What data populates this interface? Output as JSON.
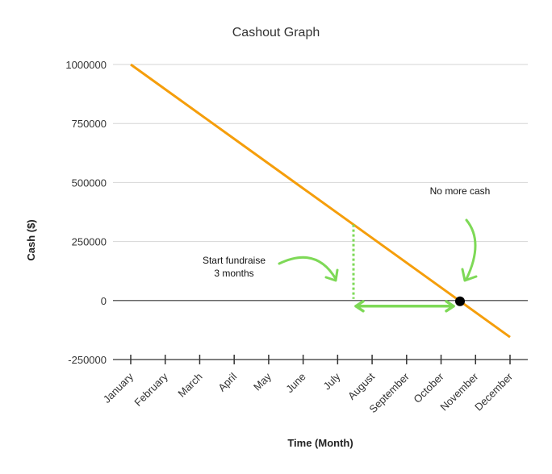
{
  "chart_data": {
    "type": "line",
    "title": "Cashout Graph",
    "xlabel": "Time (Month)",
    "ylabel": "Cash ($)",
    "categories": [
      "January",
      "February",
      "March",
      "April",
      "May",
      "June",
      "July",
      "August",
      "September",
      "October",
      "November",
      "December"
    ],
    "series": [
      {
        "values": [
          1000000,
          895000,
          790000,
          685000,
          580000,
          475000,
          370000,
          265000,
          160000,
          55000,
          -50000,
          -155000
        ]
      }
    ],
    "ylim": [
      -250000,
      1000000
    ],
    "yticks": [
      "1000000",
      "750000",
      "500000",
      "250000",
      "0",
      "-250000"
    ],
    "grid": true,
    "colors": {
      "line": "#f59e0b",
      "annotation": "#7ed957",
      "marker": "#000000"
    },
    "annotations": {
      "no_more_cash": {
        "text": "No more cash",
        "x": "October-November",
        "y": 0
      },
      "fundraise": {
        "line1": "Start fundraise",
        "line2": "3 months",
        "x": "July-August",
        "y": 300000
      }
    }
  }
}
